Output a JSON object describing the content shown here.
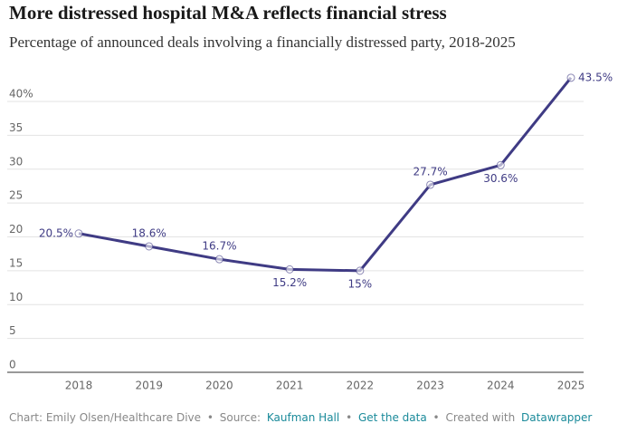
{
  "chart_data": {
    "type": "line",
    "title": "More distressed hospital M&A reflects financial stress",
    "subtitle": "Percentage of announced deals involving a financially distressed party, 2018-2025",
    "categories": [
      "2018",
      "2019",
      "2020",
      "2021",
      "2022",
      "2023",
      "2024",
      "2025"
    ],
    "series": [
      {
        "name": "Distressed deals",
        "color": "#3f3b84",
        "values": [
          20.5,
          18.6,
          16.7,
          15.2,
          15,
          27.7,
          30.6,
          43.5
        ],
        "value_labels": [
          "20.5%",
          "18.6%",
          "16.7%",
          "15.2%",
          "15%",
          "27.7%",
          "30.6%",
          "43.5%"
        ]
      }
    ],
    "ylim": [
      0,
      43.5
    ],
    "yticks": [
      0,
      5,
      10,
      15,
      20,
      25,
      30,
      35,
      {
        "value": 40,
        "label": "40%"
      }
    ],
    "grid": true,
    "footer": {
      "credit": "Chart: Emily Olsen/Healthcare Dive",
      "separator": "•",
      "source_label": "Source:",
      "source": "Kaufman Hall",
      "data_link": "Get the data",
      "created_label": "Created with",
      "tool": "Datawrapper"
    }
  }
}
